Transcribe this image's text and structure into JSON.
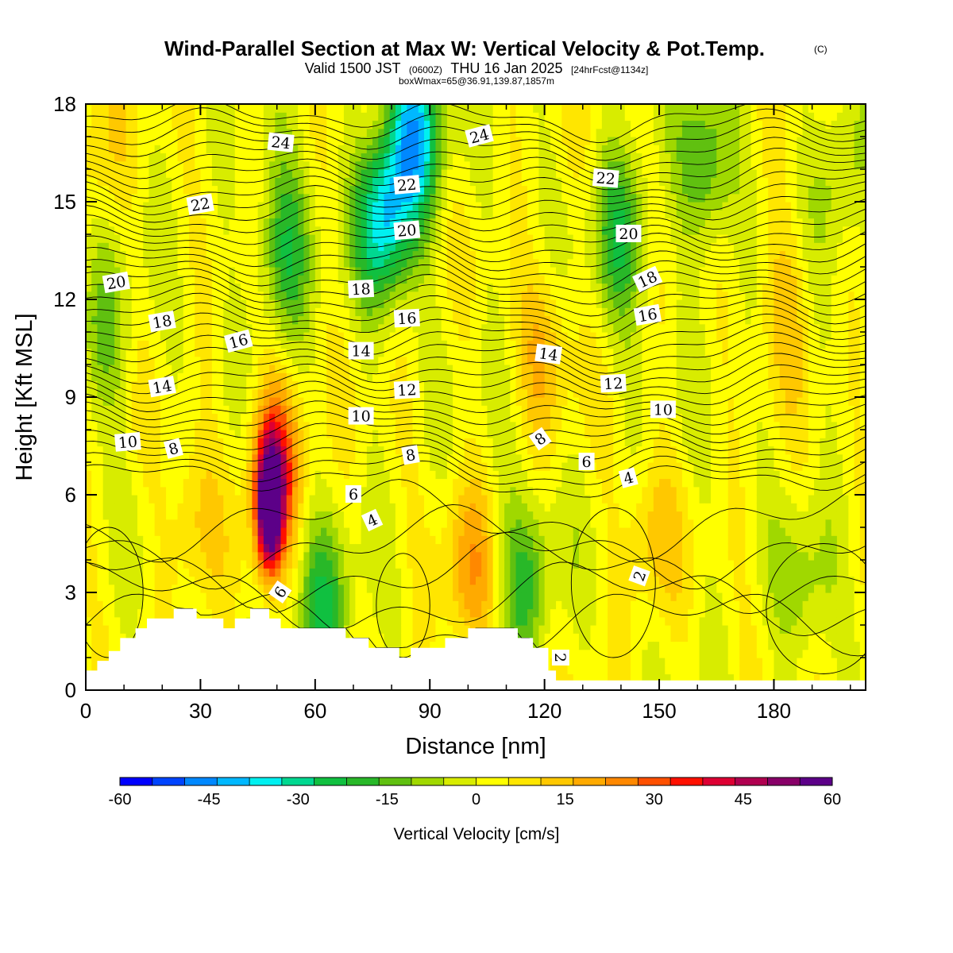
{
  "title": {
    "main": "Wind-Parallel Section at Max W: Vertical Velocity & Pot.Temp.",
    "copyright": "(C)",
    "valid_prefix": "Valid 1500 JST",
    "valid_utc": "(0600Z)",
    "valid_date": "THU 16 Jan 2025",
    "forecast": "[24hrFcst@1134z]",
    "box_info": "boxWmax=65@36.91,139.87,1857m"
  },
  "chart_data": {
    "type": "heatmap",
    "xlabel": "Distance [nm]",
    "ylabel": "Height [Kft MSL]",
    "xlim": [
      0,
      204
    ],
    "ylim": [
      0,
      18
    ],
    "x_ticks": [
      0,
      30,
      60,
      90,
      120,
      150,
      180
    ],
    "x_tick_labels": [
      "0",
      "30",
      "60",
      "90",
      "120",
      "150",
      "180"
    ],
    "y_ticks": [
      0,
      3,
      6,
      9,
      12,
      15,
      18
    ],
    "y_tick_labels": [
      "0",
      "3",
      "6",
      "9",
      "12",
      "15",
      "18"
    ],
    "colorbar": {
      "title": "Vertical Velocity [cm/s]",
      "min": -60,
      "max": 60,
      "step": 5,
      "tick_values": [
        -60,
        -45,
        -30,
        -15,
        0,
        15,
        30,
        45,
        60
      ],
      "tick_labels": [
        "-60",
        "-45",
        "-30",
        "-15",
        "0",
        "15",
        "30",
        "45",
        "60"
      ],
      "colors": [
        "#0000ff",
        "#0044ff",
        "#0088ff",
        "#00b8ff",
        "#00f0f0",
        "#00d890",
        "#10c040",
        "#28b828",
        "#60c010",
        "#a0d800",
        "#d8ec00",
        "#ffff00",
        "#ffe600",
        "#ffc800",
        "#ffaa00",
        "#ff8800",
        "#ff5000",
        "#ff1000",
        "#dd0033",
        "#b00050",
        "#880068",
        "#5c0088"
      ]
    },
    "velocity_features": [
      {
        "x": 48,
        "z": 5.6,
        "w": 60
      },
      {
        "x": 50,
        "z": 7.0,
        "w": 30
      },
      {
        "x": 28,
        "z": 5.0,
        "w": 10
      },
      {
        "x": 62,
        "z": 2.3,
        "w": -22
      },
      {
        "x": 78,
        "z": 14.5,
        "w": -35
      },
      {
        "x": 86,
        "z": 17.0,
        "w": -38
      },
      {
        "x": 52,
        "z": 13.5,
        "w": -22
      },
      {
        "x": 115,
        "z": 3.3,
        "w": -18
      },
      {
        "x": 140,
        "z": 14.0,
        "w": -20
      },
      {
        "x": 162,
        "z": 16.0,
        "w": -18
      },
      {
        "x": 100,
        "z": 3.5,
        "w": 15
      },
      {
        "x": 120,
        "z": 10.5,
        "w": 12
      },
      {
        "x": 148,
        "z": 4.5,
        "w": 10
      },
      {
        "x": 183,
        "z": 12.0,
        "w": 10
      },
      {
        "x": 3,
        "z": 16.5,
        "w": 8
      },
      {
        "x": 5,
        "z": 11.0,
        "w": -12
      },
      {
        "x": 197,
        "z": 16.0,
        "w": -10
      },
      {
        "x": 188,
        "z": 3.0,
        "w": -10
      }
    ],
    "theta_contours": {
      "levels": [
        2,
        4,
        6,
        8,
        10,
        12,
        14,
        16,
        18,
        20,
        22,
        24
      ],
      "labeled_values": [
        "24",
        "24",
        "22",
        "22",
        "22",
        "20",
        "20",
        "20",
        "18",
        "18",
        "18",
        "16",
        "16",
        "16",
        "14",
        "14",
        "14",
        "12",
        "12",
        "10",
        "10",
        "10",
        "8",
        "8",
        "8",
        "6",
        "6",
        "6",
        "4",
        "4",
        "2",
        "2"
      ]
    },
    "terrain": [
      [
        0,
        0.6
      ],
      [
        3,
        0.9
      ],
      [
        6,
        1.2
      ],
      [
        9,
        1.6
      ],
      [
        13,
        1.9
      ],
      [
        16,
        2.2
      ],
      [
        23,
        2.5
      ],
      [
        29,
        2.2
      ],
      [
        36,
        1.9
      ],
      [
        39,
        2.2
      ],
      [
        43,
        2.5
      ],
      [
        48,
        2.2
      ],
      [
        51,
        1.9
      ],
      [
        62,
        1.9
      ],
      [
        68,
        1.6
      ],
      [
        74,
        1.3
      ],
      [
        82,
        1.0
      ],
      [
        85,
        1.3
      ],
      [
        94,
        1.6
      ],
      [
        100,
        1.9
      ],
      [
        110,
        1.9
      ],
      [
        113,
        1.6
      ],
      [
        117,
        1.3
      ],
      [
        121,
        0.6
      ],
      [
        123,
        0.3
      ],
      [
        204,
        0.3
      ]
    ]
  }
}
